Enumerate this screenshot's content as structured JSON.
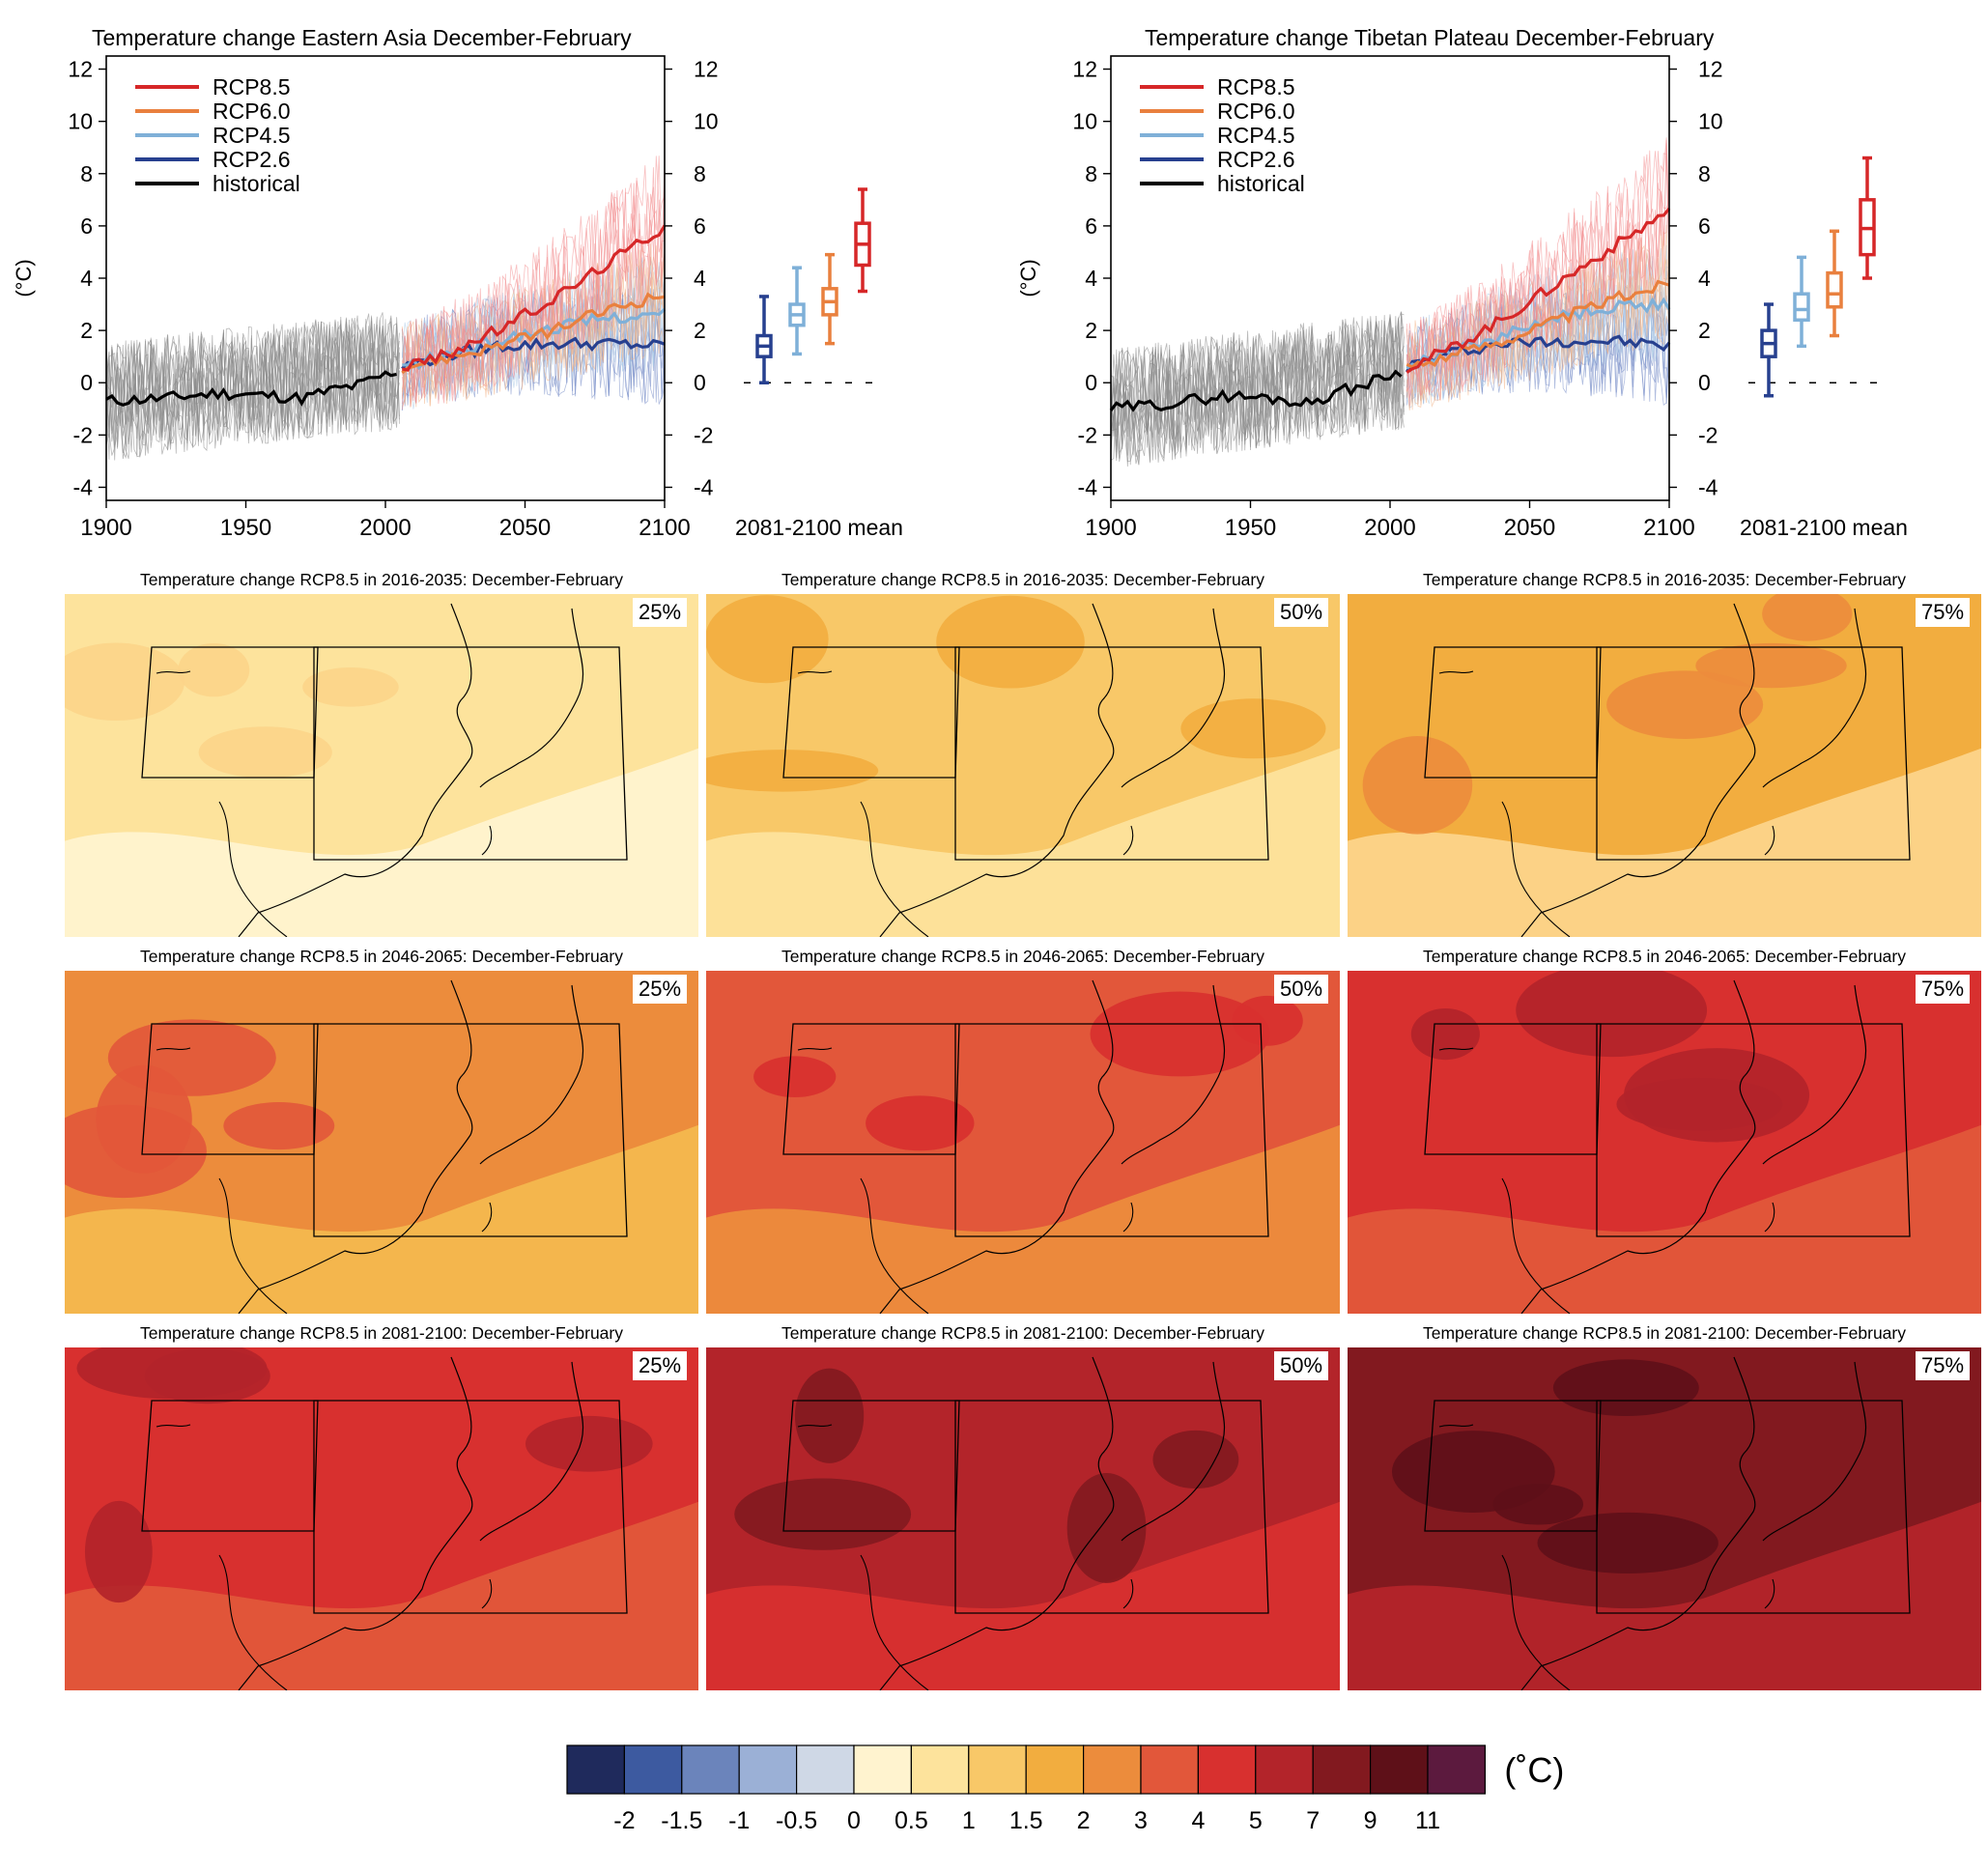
{
  "chart_data": [
    {
      "type": "line",
      "title": "Temperature change Eastern Asia December-February",
      "ylabel": "(°C)",
      "xlim": [
        1900,
        2100
      ],
      "ylim": [
        -4.5,
        12.5
      ],
      "x_ticks": [
        "1900",
        "1950",
        "2000",
        "2050",
        "2100"
      ],
      "y_ticks": [
        "-4",
        "-2",
        "0",
        "2",
        "4",
        "6",
        "8",
        "10",
        "12"
      ],
      "y_ticks_right": [
        "-4",
        "-2",
        "0",
        "2",
        "4",
        "6",
        "8",
        "10",
        "12"
      ],
      "legend": [
        "RCP8.5",
        "RCP6.0",
        "RCP4.5",
        "RCP2.6",
        "historical"
      ],
      "legend_position": "top-left",
      "boxplot_label": "2081-2100 mean",
      "series": [
        {
          "name": "historical",
          "color": "#000000",
          "x": [
            1900,
            1920,
            1940,
            1960,
            1970,
            1980,
            1990,
            2000,
            2005
          ],
          "y": [
            -0.7,
            -0.6,
            -0.4,
            -0.5,
            -0.6,
            -0.3,
            -0.1,
            0.3,
            0.5
          ]
        },
        {
          "name": "RCP8.5",
          "color": "#d62728",
          "x": [
            2006,
            2020,
            2040,
            2060,
            2080,
            2100
          ],
          "y": [
            0.6,
            1.0,
            2.0,
            3.2,
            4.6,
            6.0
          ]
        },
        {
          "name": "RCP6.0",
          "color": "#e9803e",
          "x": [
            2006,
            2020,
            2040,
            2060,
            2080,
            2100
          ],
          "y": [
            0.6,
            0.9,
            1.4,
            2.0,
            2.8,
            3.4
          ]
        },
        {
          "name": "RCP4.5",
          "color": "#7fb0d8",
          "x": [
            2006,
            2020,
            2040,
            2060,
            2080,
            2100
          ],
          "y": [
            0.6,
            1.0,
            1.6,
            2.1,
            2.5,
            2.6
          ]
        },
        {
          "name": "RCP2.6",
          "color": "#27408f",
          "x": [
            2006,
            2020,
            2040,
            2060,
            2080,
            2100
          ],
          "y": [
            0.6,
            1.0,
            1.4,
            1.5,
            1.5,
            1.4
          ]
        }
      ],
      "boxplots": [
        {
          "name": "RCP2.6",
          "color": "#27408f",
          "min": 0.0,
          "q1": 1.0,
          "median": 1.4,
          "q3": 1.8,
          "max": 3.3
        },
        {
          "name": "RCP4.5",
          "color": "#7fb0d8",
          "min": 1.1,
          "q1": 2.2,
          "median": 2.6,
          "q3": 3.0,
          "max": 4.4
        },
        {
          "name": "RCP6.0",
          "color": "#e9803e",
          "min": 1.5,
          "q1": 2.6,
          "median": 3.1,
          "q3": 3.6,
          "max": 4.9
        },
        {
          "name": "RCP8.5",
          "color": "#d62728",
          "min": 3.5,
          "q1": 4.5,
          "median": 5.3,
          "q3": 6.1,
          "max": 7.4
        }
      ]
    },
    {
      "type": "line",
      "title": "Temperature change Tibetan Plateau December-February",
      "ylabel": "(°C)",
      "xlim": [
        1900,
        2100
      ],
      "ylim": [
        -4.5,
        12.5
      ],
      "x_ticks": [
        "1900",
        "1950",
        "2000",
        "2050",
        "2100"
      ],
      "y_ticks": [
        "-4",
        "-2",
        "0",
        "2",
        "4",
        "6",
        "8",
        "10",
        "12"
      ],
      "y_ticks_right": [
        "-4",
        "-2",
        "0",
        "2",
        "4",
        "6",
        "8",
        "10",
        "12"
      ],
      "legend": [
        "RCP8.5",
        "RCP6.0",
        "RCP4.5",
        "RCP2.6",
        "historical"
      ],
      "legend_position": "top-left",
      "boxplot_label": "2081-2100 mean",
      "series": [
        {
          "name": "historical",
          "color": "#000000",
          "x": [
            1900,
            1920,
            1940,
            1960,
            1970,
            1980,
            1990,
            2000,
            2005
          ],
          "y": [
            -1.0,
            -0.8,
            -0.5,
            -0.6,
            -0.8,
            -0.4,
            -0.1,
            0.3,
            0.5
          ]
        },
        {
          "name": "RCP8.5",
          "color": "#d62728",
          "x": [
            2006,
            2020,
            2040,
            2060,
            2080,
            2100
          ],
          "y": [
            0.6,
            1.2,
            2.4,
            3.8,
            5.2,
            6.6
          ]
        },
        {
          "name": "RCP6.0",
          "color": "#e9803e",
          "x": [
            2006,
            2020,
            2040,
            2060,
            2080,
            2100
          ],
          "y": [
            0.6,
            1.0,
            1.6,
            2.4,
            3.2,
            3.8
          ]
        },
        {
          "name": "RCP4.5",
          "color": "#7fb0d8",
          "x": [
            2006,
            2020,
            2040,
            2060,
            2080,
            2100
          ],
          "y": [
            0.6,
            1.1,
            1.8,
            2.5,
            2.9,
            3.0
          ]
        },
        {
          "name": "RCP2.6",
          "color": "#27408f",
          "x": [
            2006,
            2020,
            2040,
            2060,
            2080,
            2100
          ],
          "y": [
            0.6,
            1.1,
            1.5,
            1.6,
            1.6,
            1.4
          ]
        }
      ],
      "boxplots": [
        {
          "name": "RCP2.6",
          "color": "#27408f",
          "min": -0.5,
          "q1": 1.0,
          "median": 1.5,
          "q3": 2.0,
          "max": 3.0
        },
        {
          "name": "RCP4.5",
          "color": "#7fb0d8",
          "min": 1.4,
          "q1": 2.4,
          "median": 2.8,
          "q3": 3.4,
          "max": 4.8
        },
        {
          "name": "RCP6.0",
          "color": "#e9803e",
          "min": 1.8,
          "q1": 2.9,
          "median": 3.4,
          "q3": 4.2,
          "max": 5.8
        },
        {
          "name": "RCP8.5",
          "color": "#d62728",
          "min": 4.0,
          "q1": 4.9,
          "median": 5.9,
          "q3": 7.0,
          "max": 8.6
        }
      ]
    },
    {
      "type": "heatmap",
      "maps": [
        {
          "title": "Temperature change RCP8.5 in 2016-2035: December-February",
          "percentile": "25%",
          "colors": [
            "#fde39c",
            "#fff3cf",
            "#fcd48a"
          ]
        },
        {
          "title": "Temperature change RCP8.5 in 2016-2035: December-February",
          "percentile": "50%",
          "colors": [
            "#f8c868",
            "#fde39c",
            "#f2ad3f"
          ]
        },
        {
          "title": "Temperature change RCP8.5 in 2016-2035: December-February",
          "percentile": "75%",
          "colors": [
            "#f2ad3f",
            "#fcd48a",
            "#ec8c3c"
          ]
        },
        {
          "title": "Temperature change RCP8.5 in 2046-2065: December-February",
          "percentile": "25%",
          "colors": [
            "#ec8c3c",
            "#f4b84e",
            "#e2573a"
          ]
        },
        {
          "title": "Temperature change RCP8.5 in 2046-2065: December-February",
          "percentile": "50%",
          "colors": [
            "#e2573a",
            "#ec8c3c",
            "#d8302f"
          ]
        },
        {
          "title": "Temperature change RCP8.5 in 2046-2065: December-February",
          "percentile": "75%",
          "colors": [
            "#d8302f",
            "#e2573a",
            "#b3242a"
          ]
        },
        {
          "title": "Temperature change RCP8.5 in 2081-2100: December-February",
          "percentile": "25%",
          "colors": [
            "#d8302f",
            "#e2573a",
            "#b3242a"
          ]
        },
        {
          "title": "Temperature change RCP8.5 in 2081-2100: December-February",
          "percentile": "50%",
          "colors": [
            "#b3242a",
            "#d8302f",
            "#82191f"
          ]
        },
        {
          "title": "Temperature change RCP8.5 in 2081-2100: December-February",
          "percentile": "75%",
          "colors": [
            "#82191f",
            "#b3242a",
            "#5e1018"
          ]
        }
      ],
      "colorbar": {
        "unit": "(˚C)",
        "colors": [
          "#1f2a5c",
          "#3d5aa0",
          "#6b84bb",
          "#9bb0d6",
          "#cfd8e6",
          "#fff3cf",
          "#fde39c",
          "#f8c868",
          "#f2ad3f",
          "#ec8c3c",
          "#e2573a",
          "#d8302f",
          "#b3242a",
          "#82191f",
          "#5e1018",
          "#5c1a3e"
        ],
        "labels": [
          "-2",
          "-1.5",
          "-1",
          "-0.5",
          "0",
          "0.5",
          "1",
          "1.5",
          "2",
          "3",
          "4",
          "5",
          "7",
          "9",
          "11"
        ]
      }
    }
  ]
}
